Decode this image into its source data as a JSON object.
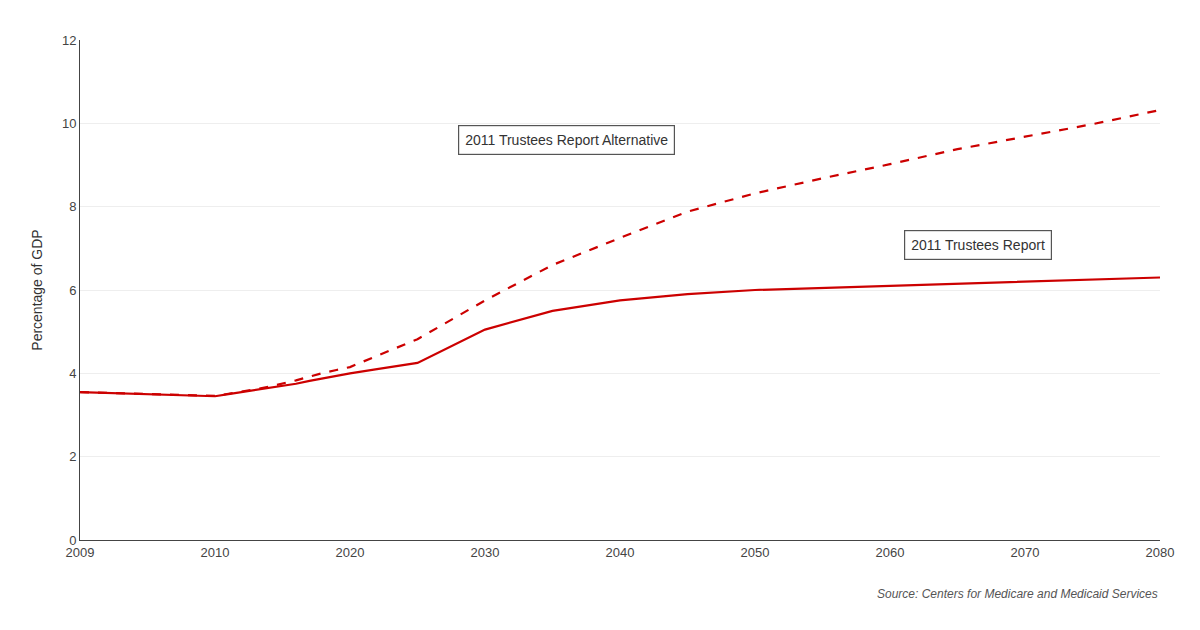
{
  "chart_data": {
    "type": "line",
    "x": [
      2009,
      2010,
      2011,
      2012,
      2013,
      2014,
      2015,
      2016,
      2017,
      2018,
      2019,
      2020,
      2022,
      2025,
      2030,
      2035,
      2040,
      2045,
      2050,
      2055,
      2060,
      2065,
      2070,
      2075,
      2080
    ],
    "series": [
      {
        "name": "2011 Trustees Report",
        "color": "#cc0000",
        "line_style": "solid",
        "values": [
          3.55,
          3.45,
          3.5,
          3.55,
          3.6,
          3.65,
          3.7,
          3.75,
          3.82,
          3.88,
          3.93,
          4.0,
          4.1,
          4.25,
          5.05,
          5.5,
          5.75,
          5.9,
          6.0,
          6.05,
          6.1,
          6.15,
          6.2,
          6.25,
          6.3
        ]
      },
      {
        "name": "2011 Trustees Report Alternative",
        "color": "#cc0000",
        "line_style": "dashed",
        "values": [
          3.55,
          3.46,
          3.51,
          3.56,
          3.62,
          3.68,
          3.75,
          3.83,
          3.92,
          4.01,
          4.08,
          4.15,
          4.42,
          4.82,
          5.75,
          6.6,
          7.25,
          7.88,
          8.32,
          8.68,
          9.02,
          9.38,
          9.68,
          9.98,
          10.32
        ]
      }
    ],
    "ylabel": "Percentage of GDP",
    "annotations": [
      "Source: Centers for Medicare and Medicaid Services"
    ],
    "xlim": [
      2009,
      2080
    ],
    "xticks": [
      2009,
      2010,
      2020,
      2030,
      2040,
      2050,
      2060,
      2070,
      2080
    ],
    "ylim": [
      0,
      12
    ],
    "yticks": [
      0,
      2,
      4,
      6,
      8,
      10,
      12
    ],
    "grid": true
  }
}
